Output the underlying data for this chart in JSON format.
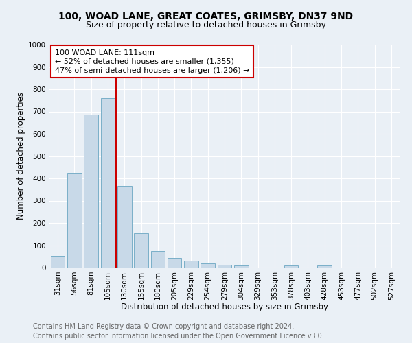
{
  "title1": "100, WOAD LANE, GREAT COATES, GRIMSBY, DN37 9ND",
  "title2": "Size of property relative to detached houses in Grimsby",
  "xlabel": "Distribution of detached houses by size in Grimsby",
  "ylabel": "Number of detached properties",
  "bar_labels": [
    "31sqm",
    "56sqm",
    "81sqm",
    "105sqm",
    "130sqm",
    "155sqm",
    "180sqm",
    "205sqm",
    "229sqm",
    "254sqm",
    "279sqm",
    "304sqm",
    "329sqm",
    "353sqm",
    "378sqm",
    "403sqm",
    "428sqm",
    "453sqm",
    "477sqm",
    "502sqm",
    "527sqm"
  ],
  "bar_values": [
    52,
    425,
    685,
    760,
    365,
    155,
    75,
    42,
    32,
    18,
    12,
    8,
    0,
    0,
    8,
    0,
    10,
    0,
    0,
    0,
    0
  ],
  "bar_color": "#c8d9e8",
  "bar_edge_color": "#7aafc8",
  "vline_x_idx": 3,
  "vline_color": "#cc0000",
  "annotation_line1": "100 WOAD LANE: 111sqm",
  "annotation_line2": "← 52% of detached houses are smaller (1,355)",
  "annotation_line3": "47% of semi-detached houses are larger (1,206) →",
  "annotation_box_color": "#ffffff",
  "annotation_box_edge_color": "#cc0000",
  "ylim": [
    0,
    1000
  ],
  "yticks": [
    0,
    100,
    200,
    300,
    400,
    500,
    600,
    700,
    800,
    900,
    1000
  ],
  "bg_color": "#eaf0f6",
  "plot_bg_color": "#eaf0f6",
  "footer1": "Contains HM Land Registry data © Crown copyright and database right 2024.",
  "footer2": "Contains public sector information licensed under the Open Government Licence v3.0.",
  "title1_fontsize": 10,
  "title2_fontsize": 9,
  "axis_label_fontsize": 8.5,
  "tick_fontsize": 7.5,
  "annotation_fontsize": 8,
  "footer_fontsize": 7
}
